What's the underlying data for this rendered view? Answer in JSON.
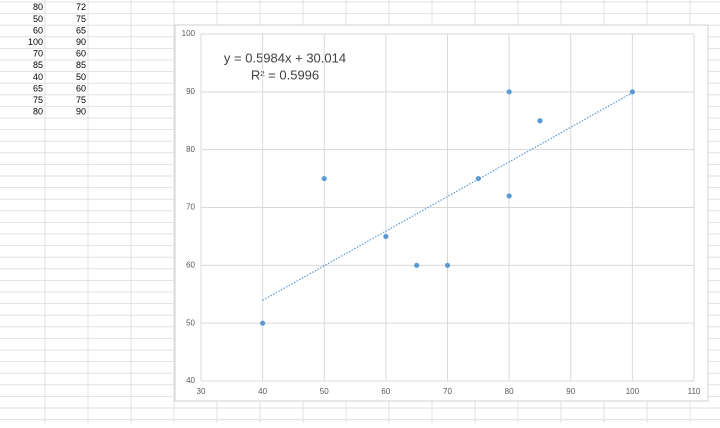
{
  "chart_data": {
    "type": "scatter",
    "x": [
      80,
      50,
      60,
      100,
      70,
      85,
      40,
      65,
      75,
      80
    ],
    "y": [
      72,
      75,
      65,
      90,
      60,
      85,
      50,
      60,
      75,
      90
    ],
    "color": "#5b9bd5",
    "xlim": [
      30,
      110
    ],
    "xticks": [
      30,
      40,
      50,
      60,
      70,
      80,
      90,
      100,
      110
    ],
    "ylim": [
      40,
      100
    ],
    "yticks": [
      40,
      50,
      60,
      70,
      80,
      90,
      100
    ],
    "grid": true,
    "trendline": "linear",
    "annotations": [
      "y = 0.5984x + 30.014",
      "R² = 0.5996"
    ]
  }
}
